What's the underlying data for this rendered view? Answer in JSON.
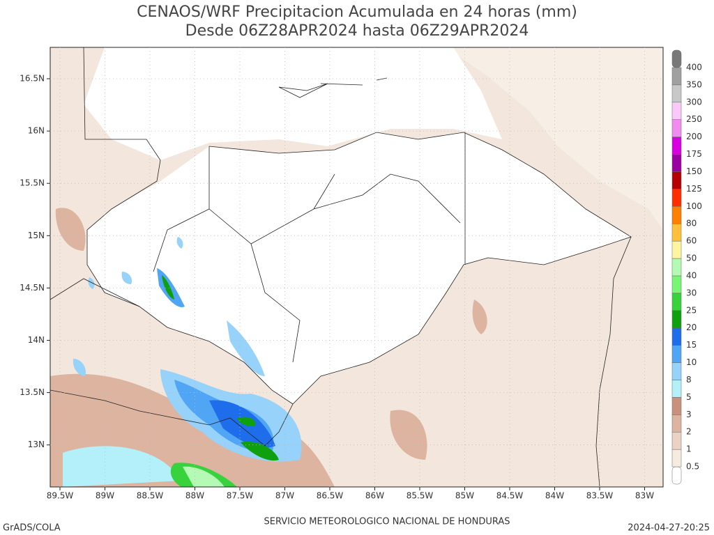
{
  "header": {
    "title": "CENAOS/WRF Precipitacion Acumulada en 24 horas (mm)",
    "subtitle": "Desde 06Z28APR2024 hasta 06Z29APR2024"
  },
  "map": {
    "lat_labels": [
      "16.5N",
      "16N",
      "15.5N",
      "15N",
      "14.5N",
      "14N",
      "13.5N",
      "13N"
    ],
    "lon_labels": [
      "89.5W",
      "89W",
      "88.5W",
      "88W",
      "87.5W",
      "87W",
      "86.5W",
      "86W",
      "85.5W",
      "85W",
      "84.5W",
      "84W",
      "83.5W",
      "83W"
    ]
  },
  "colorbar": {
    "labels": [
      0.5,
      1,
      2,
      3,
      5,
      8,
      10,
      15,
      20,
      25,
      30,
      40,
      50,
      60,
      80,
      100,
      125,
      150,
      175,
      200,
      250,
      300,
      350,
      400
    ],
    "colors": [
      "#ffffff",
      "#f5ebe0",
      "#ebd2c3",
      "#dcb4a0",
      "#c8917d",
      "#b4f0fa",
      "#96d2fa",
      "#50a5f5",
      "#1e6eeb",
      "#0fa00f",
      "#37d23c",
      "#78f573",
      "#b4fab4",
      "#fff5a0",
      "#ffc03c",
      "#ff7f00",
      "#ff2d00",
      "#b40000",
      "#9b00a0",
      "#d700e1",
      "#f08cf0",
      "#fac8fa",
      "#c8c8c8",
      "#a0a0a0",
      "#787878"
    ]
  },
  "footer": {
    "left": "GrADS/COLA",
    "center": "SERVICIO METEOROLOGICO NACIONAL DE HONDURAS",
    "right": "2024-04-27-20:25"
  }
}
